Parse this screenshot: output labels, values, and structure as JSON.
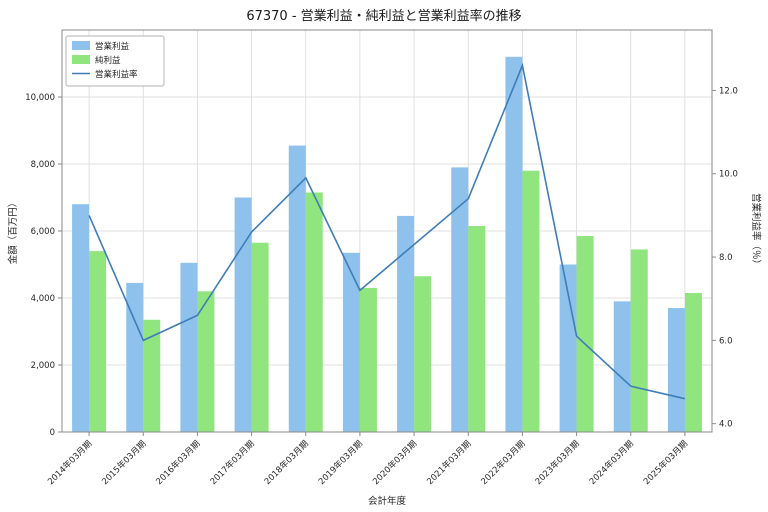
{
  "chart_data": {
    "type": "combo",
    "title": "67370 - 営業利益・純利益と営業利益率の推移",
    "xlabel": "会計年度",
    "ylabel_left": "金額（百万円）",
    "ylabel_right": "営業利益率（％）",
    "categories": [
      "2014年03月期",
      "2015年03月期",
      "2016年03月期",
      "2017年03月期",
      "2018年03月期",
      "2019年03月期",
      "2020年03月期",
      "2021年03月期",
      "2022年03月期",
      "2023年03月期",
      "2024年03月期",
      "2025年03月期"
    ],
    "bar_series": [
      {
        "name": "営業利益",
        "color": "#8ec2ec",
        "values": [
          6800,
          4450,
          5050,
          7000,
          8550,
          5350,
          6450,
          7900,
          11200,
          5000,
          3900,
          3700
        ]
      },
      {
        "name": "純利益",
        "color": "#90e57e",
        "values": [
          5400,
          3350,
          4200,
          5650,
          7150,
          4300,
          4650,
          6150,
          7800,
          5850,
          5450,
          4150
        ]
      }
    ],
    "line_series": {
      "name": "営業利益率",
      "color": "#3e7db8",
      "values": [
        9.0,
        6.0,
        6.6,
        8.6,
        9.9,
        7.2,
        8.3,
        9.4,
        12.6,
        6.1,
        4.9,
        4.6
      ]
    },
    "left_axis": {
      "min": 0,
      "max": 12000,
      "ticks": [
        0,
        2000,
        4000,
        6000,
        8000,
        10000
      ]
    },
    "right_axis": {
      "min": 3.8,
      "max": 13.45,
      "ticks": [
        4.0,
        6.0,
        8.0,
        10.0,
        12.0
      ]
    },
    "grid": true,
    "legend_position": "upper left",
    "colors": {
      "grid": "#d9d9d9",
      "spine": "#8a8a8a",
      "tick_text": "#262626",
      "legend_border": "#b3b3b3"
    }
  }
}
